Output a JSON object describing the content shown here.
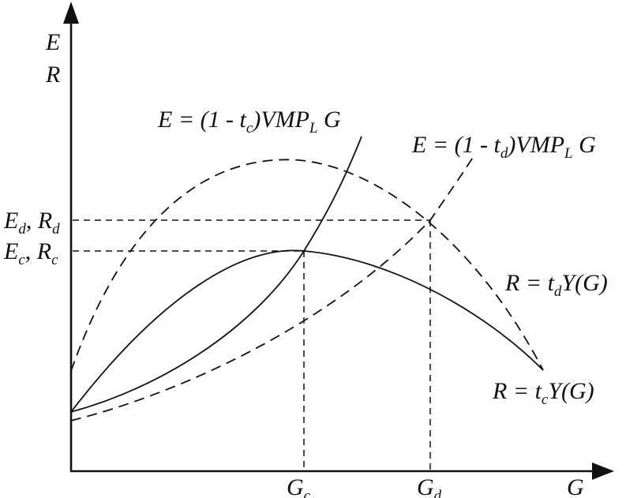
{
  "axes": {
    "y_label_top": "E",
    "y_label_bottom": "R",
    "x_label": "G"
  },
  "y_ticks": {
    "d": {
      "e": "E",
      "e_sub": "d",
      "sep": ", ",
      "r": "R",
      "r_sub": "d"
    },
    "c": {
      "e": "E",
      "e_sub": "c",
      "sep": ", ",
      "r": "R",
      "r_sub": "c"
    }
  },
  "x_ticks": {
    "c": {
      "main": "G",
      "sub": "c"
    },
    "d": {
      "main": "G",
      "sub": "d"
    }
  },
  "curve_labels": {
    "e_c": {
      "pre": "E = (1 - t",
      "sub1": "c",
      "mid": ")VMP",
      "sub2": "L",
      "post": " G"
    },
    "e_d": {
      "pre": "E = (1 - t",
      "sub1": "d",
      "mid": ")VMP",
      "sub2": "L",
      "post": " G"
    },
    "r_d": {
      "pre": "R = t",
      "sub": "d",
      "post": "Y(G)"
    },
    "r_c": {
      "pre": "R = t",
      "sub": "c",
      "post": "Y(G)"
    }
  },
  "colors": {
    "ink": "#111111",
    "background": "#ffffff"
  }
}
